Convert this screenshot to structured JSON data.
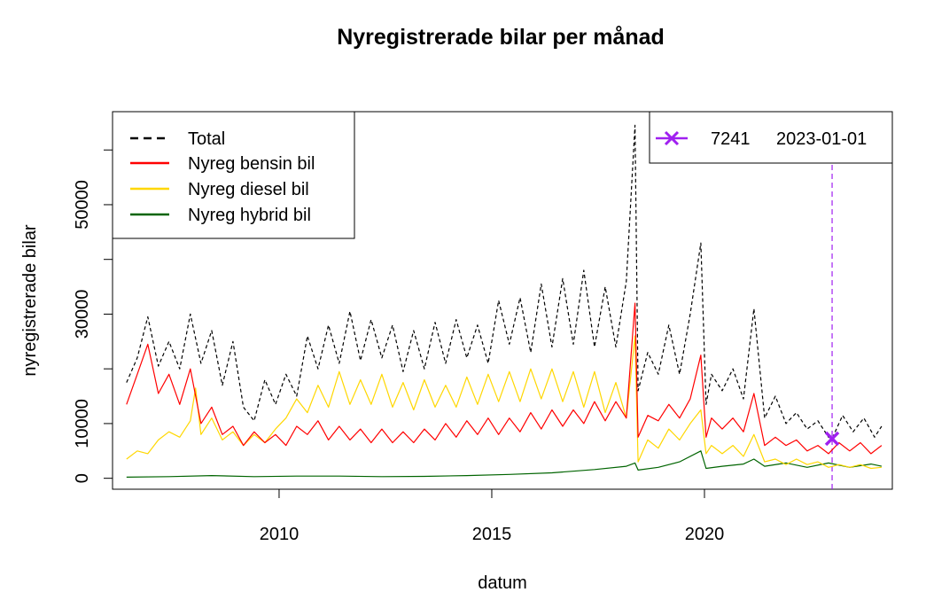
{
  "chart_data": {
    "type": "line",
    "title": "Nyregistrerade bilar per månad",
    "xlabel": "datum",
    "ylabel": "nyregistrerade bilar",
    "xlim": [
      "2006-02-01",
      "2024-06-01"
    ],
    "ylim": [
      -2000,
      67000
    ],
    "x_ticks": [
      {
        "date": "2010-01-01",
        "label": "2010"
      },
      {
        "date": "2015-01-01",
        "label": "2015"
      },
      {
        "date": "2020-01-01",
        "label": "2020"
      }
    ],
    "y_ticks": [
      {
        "value": 0,
        "label": "0"
      },
      {
        "value": 10000,
        "label": "10000"
      },
      {
        "value": 30000,
        "label": "30000"
      },
      {
        "value": 50000,
        "label": "50000"
      }
    ],
    "y_minor_ticks": [
      20000,
      40000,
      60000
    ],
    "grid": false,
    "legend_placement": "top-left",
    "series": [
      {
        "name": "Total",
        "color": "#000000",
        "dash": "dashed",
        "anchors": [
          [
            "2006-06-01",
            17500
          ],
          [
            "2006-09-01",
            22000
          ],
          [
            "2006-12-01",
            29500
          ],
          [
            "2007-03-01",
            20500
          ],
          [
            "2007-06-01",
            25000
          ],
          [
            "2007-09-01",
            20000
          ],
          [
            "2007-12-01",
            30000
          ],
          [
            "2008-03-01",
            21000
          ],
          [
            "2008-06-01",
            27000
          ],
          [
            "2008-09-01",
            17000
          ],
          [
            "2008-12-01",
            25000
          ],
          [
            "2009-03-01",
            13000
          ],
          [
            "2009-06-01",
            10500
          ],
          [
            "2009-09-01",
            18000
          ],
          [
            "2009-12-01",
            13500
          ],
          [
            "2010-03-01",
            19000
          ],
          [
            "2010-06-01",
            15000
          ],
          [
            "2010-09-01",
            26000
          ],
          [
            "2010-12-01",
            20000
          ],
          [
            "2011-03-01",
            28000
          ],
          [
            "2011-06-01",
            21000
          ],
          [
            "2011-09-01",
            30500
          ],
          [
            "2011-12-01",
            21500
          ],
          [
            "2012-03-01",
            29000
          ],
          [
            "2012-06-01",
            22000
          ],
          [
            "2012-09-01",
            28000
          ],
          [
            "2012-12-01",
            19500
          ],
          [
            "2013-03-01",
            27000
          ],
          [
            "2013-06-01",
            20000
          ],
          [
            "2013-09-01",
            28500
          ],
          [
            "2013-12-01",
            21000
          ],
          [
            "2014-03-01",
            29000
          ],
          [
            "2014-06-01",
            22000
          ],
          [
            "2014-09-01",
            28000
          ],
          [
            "2014-12-01",
            21000
          ],
          [
            "2015-03-01",
            32500
          ],
          [
            "2015-06-01",
            24500
          ],
          [
            "2015-09-01",
            33000
          ],
          [
            "2015-12-01",
            23000
          ],
          [
            "2016-03-01",
            35500
          ],
          [
            "2016-06-01",
            24000
          ],
          [
            "2016-09-01",
            36500
          ],
          [
            "2016-12-01",
            24500
          ],
          [
            "2017-03-01",
            38000
          ],
          [
            "2017-06-01",
            24000
          ],
          [
            "2017-09-01",
            35000
          ],
          [
            "2017-12-01",
            24000
          ],
          [
            "2018-03-01",
            36000
          ],
          [
            "2018-05-15",
            64500
          ],
          [
            "2018-06-10",
            16000
          ],
          [
            "2018-09-01",
            23000
          ],
          [
            "2018-12-01",
            19000
          ],
          [
            "2019-03-01",
            28000
          ],
          [
            "2019-06-01",
            19000
          ],
          [
            "2019-09-01",
            30000
          ],
          [
            "2019-12-01",
            43000
          ],
          [
            "2020-01-15",
            13500
          ],
          [
            "2020-03-01",
            19000
          ],
          [
            "2020-06-01",
            16000
          ],
          [
            "2020-09-01",
            20000
          ],
          [
            "2020-12-01",
            14500
          ],
          [
            "2021-03-01",
            31000
          ],
          [
            "2021-06-01",
            11000
          ],
          [
            "2021-09-01",
            15000
          ],
          [
            "2021-12-01",
            10000
          ],
          [
            "2022-03-01",
            12000
          ],
          [
            "2022-06-01",
            9000
          ],
          [
            "2022-09-01",
            10500
          ],
          [
            "2022-12-01",
            7500
          ],
          [
            "2023-01-01",
            7241
          ],
          [
            "2023-04-01",
            11500
          ],
          [
            "2023-07-01",
            8500
          ],
          [
            "2023-10-01",
            11000
          ],
          [
            "2024-01-01",
            7500
          ],
          [
            "2024-03-01",
            9500
          ]
        ]
      },
      {
        "name": "Nyreg bensin bil",
        "color": "#ff0000",
        "dash": "solid",
        "anchors": [
          [
            "2006-06-01",
            13500
          ],
          [
            "2006-09-01",
            19000
          ],
          [
            "2006-12-01",
            24500
          ],
          [
            "2007-03-01",
            15500
          ],
          [
            "2007-06-01",
            19000
          ],
          [
            "2007-09-01",
            13500
          ],
          [
            "2007-12-01",
            20000
          ],
          [
            "2008-03-01",
            10000
          ],
          [
            "2008-06-01",
            13000
          ],
          [
            "2008-09-01",
            8000
          ],
          [
            "2008-12-01",
            9500
          ],
          [
            "2009-03-01",
            6000
          ],
          [
            "2009-06-01",
            8500
          ],
          [
            "2009-09-01",
            6500
          ],
          [
            "2009-12-01",
            8000
          ],
          [
            "2010-03-01",
            6000
          ],
          [
            "2010-06-01",
            9500
          ],
          [
            "2010-09-01",
            8000
          ],
          [
            "2010-12-01",
            10500
          ],
          [
            "2011-03-01",
            7000
          ],
          [
            "2011-06-01",
            9500
          ],
          [
            "2011-09-01",
            7000
          ],
          [
            "2011-12-01",
            9000
          ],
          [
            "2012-03-01",
            6500
          ],
          [
            "2012-06-01",
            9000
          ],
          [
            "2012-09-01",
            6500
          ],
          [
            "2012-12-01",
            8500
          ],
          [
            "2013-03-01",
            6500
          ],
          [
            "2013-06-01",
            9000
          ],
          [
            "2013-09-01",
            7000
          ],
          [
            "2013-12-01",
            10000
          ],
          [
            "2014-03-01",
            7500
          ],
          [
            "2014-06-01",
            10500
          ],
          [
            "2014-09-01",
            8000
          ],
          [
            "2014-12-01",
            11000
          ],
          [
            "2015-03-01",
            8000
          ],
          [
            "2015-06-01",
            11000
          ],
          [
            "2015-09-01",
            8500
          ],
          [
            "2015-12-01",
            12000
          ],
          [
            "2016-03-01",
            9000
          ],
          [
            "2016-06-01",
            12500
          ],
          [
            "2016-09-01",
            9500
          ],
          [
            "2016-12-01",
            12500
          ],
          [
            "2017-03-01",
            10000
          ],
          [
            "2017-06-01",
            14000
          ],
          [
            "2017-09-01",
            10500
          ],
          [
            "2017-12-01",
            14000
          ],
          [
            "2018-03-01",
            11000
          ],
          [
            "2018-05-15",
            32000
          ],
          [
            "2018-06-10",
            7500
          ],
          [
            "2018-09-01",
            11500
          ],
          [
            "2018-12-01",
            10500
          ],
          [
            "2019-03-01",
            13500
          ],
          [
            "2019-06-01",
            11000
          ],
          [
            "2019-09-01",
            14500
          ],
          [
            "2019-12-01",
            22500
          ],
          [
            "2020-01-15",
            7500
          ],
          [
            "2020-03-01",
            11000
          ],
          [
            "2020-06-01",
            9000
          ],
          [
            "2020-09-01",
            11000
          ],
          [
            "2020-12-01",
            8500
          ],
          [
            "2021-03-01",
            15500
          ],
          [
            "2021-06-01",
            6000
          ],
          [
            "2021-09-01",
            7500
          ],
          [
            "2021-12-01",
            6000
          ],
          [
            "2022-03-01",
            7000
          ],
          [
            "2022-06-01",
            5000
          ],
          [
            "2022-09-01",
            6000
          ],
          [
            "2022-12-01",
            4500
          ],
          [
            "2023-03-01",
            6500
          ],
          [
            "2023-06-01",
            5000
          ],
          [
            "2023-09-01",
            6500
          ],
          [
            "2023-12-01",
            4500
          ],
          [
            "2024-03-01",
            6000
          ]
        ]
      },
      {
        "name": "Nyreg diesel bil",
        "color": "#ffd700",
        "dash": "solid",
        "anchors": [
          [
            "2006-06-01",
            3500
          ],
          [
            "2006-09-01",
            5000
          ],
          [
            "2006-12-01",
            4500
          ],
          [
            "2007-03-01",
            7000
          ],
          [
            "2007-06-01",
            8500
          ],
          [
            "2007-09-01",
            7500
          ],
          [
            "2007-12-01",
            10500
          ],
          [
            "2008-01-15",
            16500
          ],
          [
            "2008-03-01",
            8000
          ],
          [
            "2008-06-01",
            11000
          ],
          [
            "2008-09-01",
            7000
          ],
          [
            "2008-12-01",
            8500
          ],
          [
            "2009-03-01",
            6000
          ],
          [
            "2009-06-01",
            8000
          ],
          [
            "2009-09-01",
            6500
          ],
          [
            "2009-12-01",
            9000
          ],
          [
            "2010-03-01",
            11000
          ],
          [
            "2010-06-01",
            14500
          ],
          [
            "2010-09-01",
            12000
          ],
          [
            "2010-12-01",
            17000
          ],
          [
            "2011-03-01",
            13000
          ],
          [
            "2011-06-01",
            19500
          ],
          [
            "2011-09-01",
            13500
          ],
          [
            "2011-12-01",
            18000
          ],
          [
            "2012-03-01",
            13500
          ],
          [
            "2012-06-01",
            19000
          ],
          [
            "2012-09-01",
            13000
          ],
          [
            "2012-12-01",
            17500
          ],
          [
            "2013-03-01",
            12500
          ],
          [
            "2013-06-01",
            18000
          ],
          [
            "2013-09-01",
            13000
          ],
          [
            "2013-12-01",
            17000
          ],
          [
            "2014-03-01",
            13000
          ],
          [
            "2014-06-01",
            18500
          ],
          [
            "2014-09-01",
            13500
          ],
          [
            "2014-12-01",
            19000
          ],
          [
            "2015-03-01",
            14000
          ],
          [
            "2015-06-01",
            19500
          ],
          [
            "2015-09-01",
            14000
          ],
          [
            "2015-12-01",
            20000
          ],
          [
            "2016-03-01",
            14500
          ],
          [
            "2016-06-01",
            20000
          ],
          [
            "2016-09-01",
            14000
          ],
          [
            "2016-12-01",
            19500
          ],
          [
            "2017-03-01",
            13000
          ],
          [
            "2017-06-01",
            19500
          ],
          [
            "2017-09-01",
            12000
          ],
          [
            "2017-12-01",
            17500
          ],
          [
            "2018-03-01",
            11000
          ],
          [
            "2018-05-15",
            26000
          ],
          [
            "2018-06-10",
            3000
          ],
          [
            "2018-09-01",
            7000
          ],
          [
            "2018-12-01",
            5500
          ],
          [
            "2019-03-01",
            9000
          ],
          [
            "2019-06-01",
            7000
          ],
          [
            "2019-09-01",
            10000
          ],
          [
            "2019-12-01",
            12500
          ],
          [
            "2020-01-15",
            4500
          ],
          [
            "2020-03-01",
            6000
          ],
          [
            "2020-06-01",
            4500
          ],
          [
            "2020-09-01",
            6000
          ],
          [
            "2020-12-01",
            4000
          ],
          [
            "2021-03-01",
            8000
          ],
          [
            "2021-06-01",
            3000
          ],
          [
            "2021-09-01",
            3500
          ],
          [
            "2021-12-01",
            2500
          ],
          [
            "2022-03-01",
            3500
          ],
          [
            "2022-06-01",
            2500
          ],
          [
            "2022-09-01",
            3000
          ],
          [
            "2022-12-01",
            2000
          ],
          [
            "2023-03-01",
            2500
          ],
          [
            "2023-06-01",
            2000
          ],
          [
            "2023-09-01",
            2500
          ],
          [
            "2023-12-01",
            1800
          ],
          [
            "2024-03-01",
            2000
          ]
        ]
      },
      {
        "name": "Nyreg hybrid bil",
        "color": "#006400",
        "dash": "solid",
        "anchors": [
          [
            "2006-06-01",
            200
          ],
          [
            "2007-06-01",
            300
          ],
          [
            "2008-06-01",
            500
          ],
          [
            "2009-06-01",
            300
          ],
          [
            "2010-06-01",
            400
          ],
          [
            "2011-06-01",
            400
          ],
          [
            "2012-06-01",
            300
          ],
          [
            "2013-06-01",
            350
          ],
          [
            "2014-06-01",
            500
          ],
          [
            "2015-06-01",
            700
          ],
          [
            "2016-06-01",
            1000
          ],
          [
            "2017-06-01",
            1600
          ],
          [
            "2018-03-01",
            2200
          ],
          [
            "2018-05-15",
            2800
          ],
          [
            "2018-06-10",
            1500
          ],
          [
            "2018-12-01",
            2000
          ],
          [
            "2019-06-01",
            3000
          ],
          [
            "2019-12-01",
            5000
          ],
          [
            "2020-01-15",
            1800
          ],
          [
            "2020-06-01",
            2200
          ],
          [
            "2020-12-01",
            2600
          ],
          [
            "2021-03-01",
            3500
          ],
          [
            "2021-06-01",
            2200
          ],
          [
            "2021-12-01",
            2800
          ],
          [
            "2022-06-01",
            2000
          ],
          [
            "2022-12-01",
            2800
          ],
          [
            "2023-06-01",
            2000
          ],
          [
            "2023-12-01",
            2600
          ],
          [
            "2024-03-01",
            2200
          ]
        ]
      }
    ],
    "marker": {
      "date": "2023-01-01",
      "value": 7241,
      "color": "#a020f0",
      "legend_value": "7241",
      "legend_date": "2023-01-01",
      "legend_placement": "top-right"
    }
  }
}
